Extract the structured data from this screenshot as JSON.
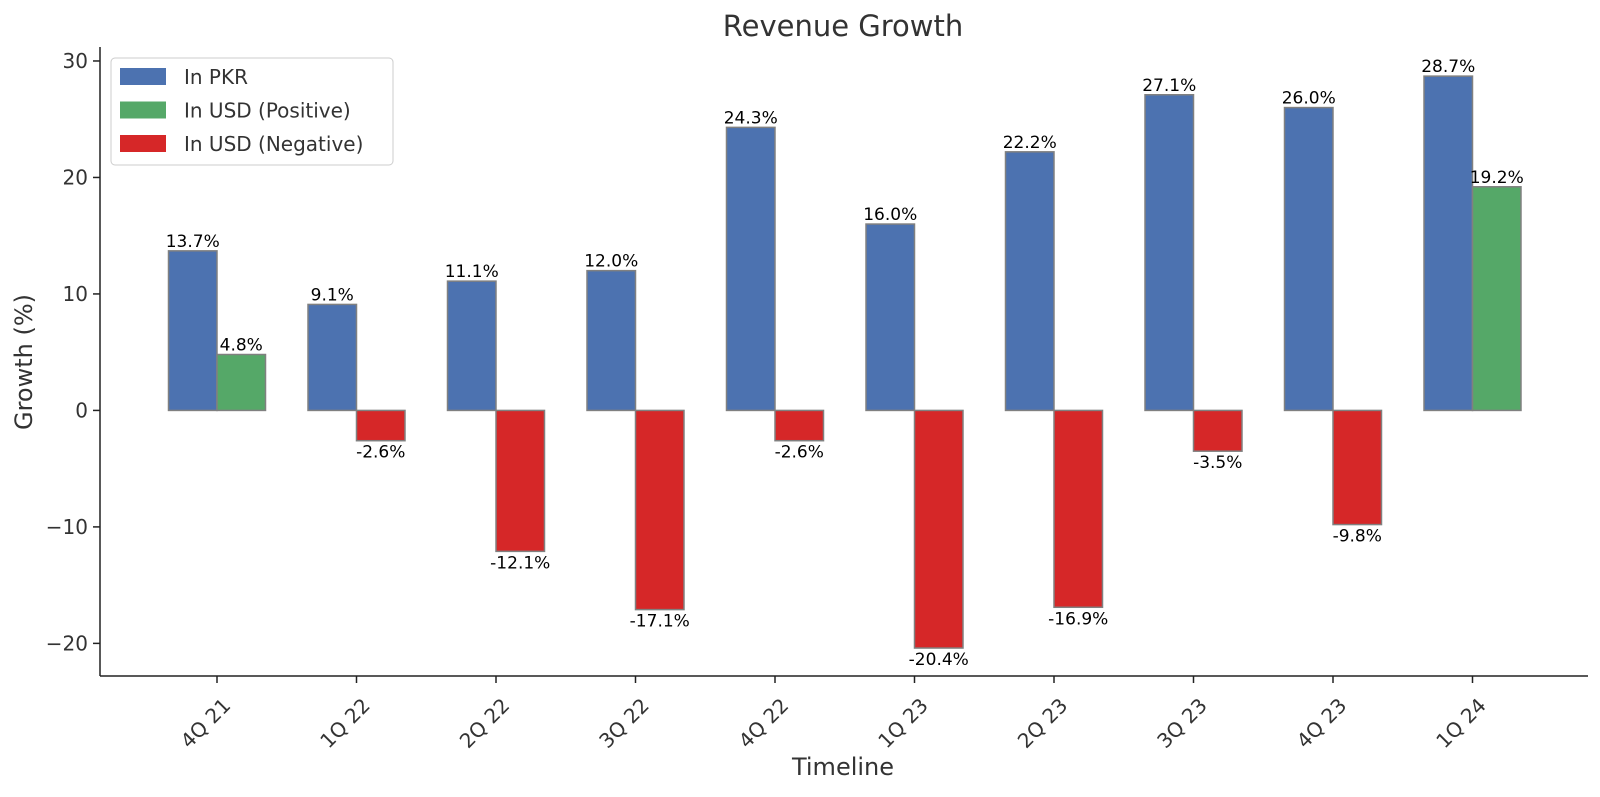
{
  "chart_data": {
    "type": "bar",
    "title": "Revenue Growth",
    "xlabel": "Timeline",
    "ylabel": "Growth (%)",
    "categories": [
      "4Q 21",
      "1Q 22",
      "2Q 22",
      "3Q 22",
      "4Q 22",
      "1Q 23",
      "2Q 23",
      "3Q 23",
      "4Q 23",
      "1Q 24"
    ],
    "series": [
      {
        "name": "In PKR",
        "values": [
          13.7,
          9.1,
          11.1,
          12.0,
          24.3,
          16.0,
          22.2,
          27.1,
          26.0,
          28.7
        ]
      },
      {
        "name": "In USD",
        "values": [
          4.8,
          -2.6,
          -12.1,
          -17.1,
          -2.6,
          -20.4,
          -16.9,
          -3.5,
          -9.8,
          19.2
        ]
      }
    ],
    "data_labels": {
      "pkr": [
        "13.7%",
        "9.1%",
        "11.1%",
        "12.0%",
        "24.3%",
        "16.0%",
        "22.2%",
        "27.1%",
        "26.0%",
        "28.7%"
      ],
      "usd": [
        "4.8%",
        "-2.6%",
        "-12.1%",
        "-17.1%",
        "-2.6%",
        "-20.4%",
        "-16.9%",
        "-3.5%",
        "-9.8%",
        "19.2%"
      ]
    },
    "legend": {
      "placement": "top-left",
      "entries": [
        "In PKR",
        "In USD (Positive)",
        "In USD (Negative)"
      ]
    },
    "yticks": [
      -20,
      -10,
      0,
      10,
      20,
      30
    ],
    "ytick_labels": [
      "−20",
      "−10",
      "0",
      "10",
      "20",
      "30"
    ],
    "ylim": [
      -22.8,
      31.2
    ],
    "grid": false,
    "colors": {
      "pkr": "#4c72b0",
      "usd_positive": "#55a868",
      "usd_negative": "#d62728",
      "bar_edge": "#808080",
      "axis": "#222222",
      "text": "#333333"
    }
  }
}
